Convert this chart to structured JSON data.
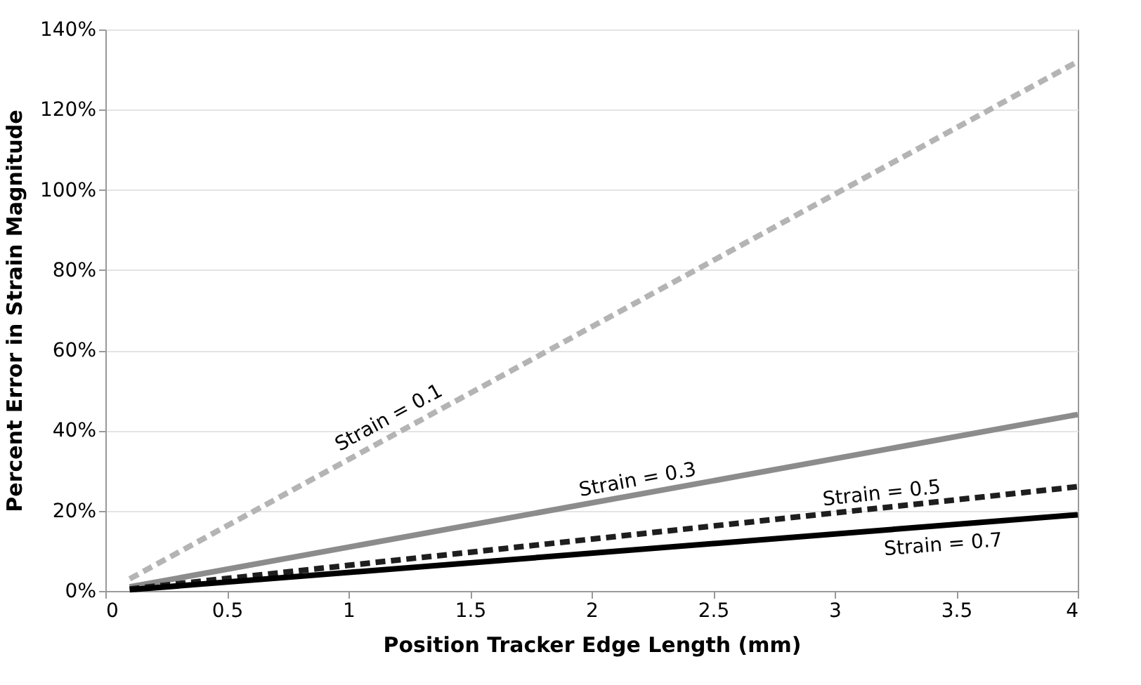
{
  "chart_data": {
    "type": "line",
    "xlabel": "Position Tracker Edge Length (mm)",
    "ylabel": "Percent Error in Strain Magnitude",
    "x": [
      0.1,
      4
    ],
    "series": [
      {
        "name": "Strain = 0.1",
        "color": "#b4b4b4",
        "line_style": "dashed",
        "values": [
          3,
          132
        ]
      },
      {
        "name": "Strain = 0.3",
        "color": "#8c8c8c",
        "line_style": "solid",
        "values": [
          1,
          44
        ]
      },
      {
        "name": "Strain = 0.5",
        "color": "#1e1e1e",
        "line_style": "dashed",
        "values": [
          0.5,
          26
        ]
      },
      {
        "name": "Strain = 0.7",
        "color": "#000000",
        "line_style": "solid",
        "values": [
          0.3,
          19
        ]
      }
    ],
    "xlim": [
      0,
      4
    ],
    "xticks": [
      0,
      0.5,
      1,
      1.5,
      2,
      2.5,
      3,
      3.5,
      4
    ],
    "ylim": [
      0,
      140
    ],
    "yticks": [
      {
        "value": 0,
        "label": "0%"
      },
      {
        "value": 20,
        "label": "20%"
      },
      {
        "value": 40,
        "label": "40%"
      },
      {
        "value": 60,
        "label": "60%"
      },
      {
        "value": 80,
        "label": "80%"
      },
      {
        "value": 100,
        "label": "100%"
      },
      {
        "value": 120,
        "label": "120%"
      },
      {
        "value": 140,
        "label": "140%"
      }
    ],
    "grid": "y",
    "legend": false,
    "marker": "none"
  }
}
